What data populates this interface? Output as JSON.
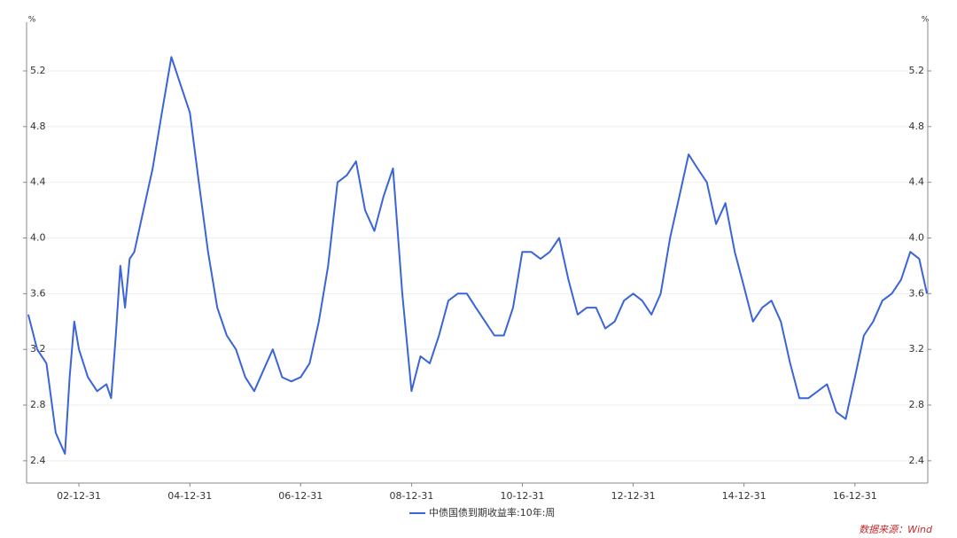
{
  "chart_data": {
    "type": "line",
    "y_unit": "%",
    "source": "数据来源：Wind",
    "grid": true,
    "legend": "bottom",
    "xlim": [
      "02-01-20",
      "18-04-25"
    ],
    "xticks": [
      "02-12-31",
      "04-12-31",
      "06-12-31",
      "08-12-31",
      "10-12-31",
      "12-12-31",
      "14-12-31",
      "16-12-31"
    ],
    "ylim": [
      2.24,
      5.55
    ],
    "yticks": [
      2.4,
      2.8,
      3.2,
      3.6,
      {
        "value": 4,
        "label": "4.0"
      },
      4.4,
      4.8,
      5.2
    ],
    "x": [
      "02-01-31",
      "02-03-31",
      "02-05-31",
      "02-07-31",
      "02-09-30",
      "02-10-31",
      "02-11-30",
      "02-12-31",
      "03-02-28",
      "03-04-30",
      "03-06-30",
      "03-07-31",
      "03-08-31",
      "03-09-30",
      "03-10-31",
      "03-11-30",
      "03-12-31",
      "04-02-29",
      "04-04-30",
      "04-06-30",
      "04-08-31",
      "04-10-31",
      "04-12-31",
      "05-02-28",
      "05-04-30",
      "05-06-30",
      "05-08-31",
      "05-10-31",
      "05-12-31",
      "06-02-28",
      "06-04-30",
      "06-06-30",
      "06-08-31",
      "06-10-31",
      "06-12-31",
      "07-02-28",
      "07-04-30",
      "07-06-30",
      "07-08-31",
      "07-10-31",
      "07-12-31",
      "08-02-29",
      "08-04-30",
      "08-06-30",
      "08-08-31",
      "08-10-31",
      "08-12-31",
      "09-02-28",
      "09-04-30",
      "09-06-30",
      "09-08-31",
      "09-10-31",
      "09-12-31",
      "10-02-28",
      "10-04-30",
      "10-06-30",
      "10-08-31",
      "10-10-31",
      "10-12-31",
      "11-02-28",
      "11-04-30",
      "11-06-30",
      "11-08-31",
      "11-10-31",
      "11-12-31",
      "12-02-29",
      "12-04-30",
      "12-06-30",
      "12-08-31",
      "12-10-31",
      "12-12-31",
      "13-02-28",
      "13-04-30",
      "13-06-30",
      "13-08-31",
      "13-10-31",
      "13-12-31",
      "14-02-28",
      "14-04-30",
      "14-06-30",
      "14-08-31",
      "14-10-31",
      "14-12-31",
      "15-02-28",
      "15-04-30",
      "15-06-30",
      "15-08-31",
      "15-10-31",
      "15-12-31",
      "16-02-29",
      "16-04-30",
      "16-06-30",
      "16-08-31",
      "16-10-31",
      "16-12-31",
      "17-02-28",
      "17-04-30",
      "17-06-30",
      "17-08-31",
      "17-10-31",
      "17-12-31",
      "18-02-28",
      "18-04-20"
    ],
    "series": [
      {
        "name": "中债国债到期收益率:10年:周",
        "color": "#3a64d8",
        "values": [
          3.45,
          3.2,
          3.1,
          2.6,
          2.45,
          3.0,
          3.4,
          3.2,
          3.0,
          2.9,
          2.95,
          2.85,
          3.3,
          3.8,
          3.5,
          3.85,
          3.9,
          4.2,
          4.5,
          4.9,
          5.3,
          5.1,
          4.9,
          4.4,
          3.9,
          3.5,
          3.3,
          3.2,
          3.0,
          2.9,
          3.05,
          3.2,
          3.0,
          2.97,
          3.0,
          3.1,
          3.4,
          3.8,
          4.4,
          4.45,
          4.55,
          4.2,
          4.05,
          4.3,
          4.5,
          3.6,
          2.9,
          3.15,
          3.1,
          3.3,
          3.55,
          3.6,
          3.6,
          3.5,
          3.4,
          3.3,
          3.3,
          3.5,
          3.9,
          3.9,
          3.85,
          3.9,
          4.0,
          3.7,
          3.45,
          3.5,
          3.5,
          3.35,
          3.4,
          3.55,
          3.6,
          3.55,
          3.45,
          3.6,
          4.0,
          4.3,
          4.6,
          4.5,
          4.4,
          4.1,
          4.25,
          3.9,
          3.65,
          3.4,
          3.5,
          3.55,
          3.4,
          3.1,
          2.85,
          2.85,
          2.9,
          2.95,
          2.75,
          2.7,
          3.0,
          3.3,
          3.4,
          3.55,
          3.6,
          3.7,
          3.9,
          3.85,
          3.6
        ]
      }
    ]
  }
}
